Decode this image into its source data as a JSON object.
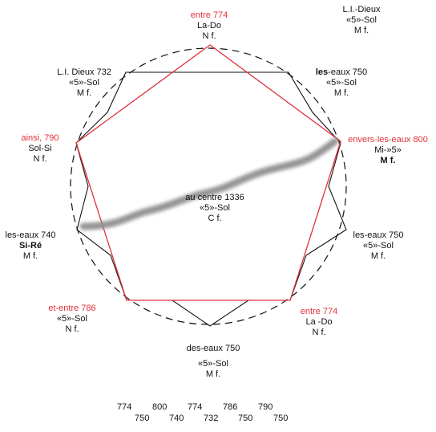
{
  "labels": {
    "top": {
      "head": "entre 774",
      "l2": "La-Do",
      "l3": "N f."
    },
    "top_right_corner": {
      "l1": "L.I.-Dieux",
      "l2": "«5»-Sol",
      "l3": "M f."
    },
    "upper_left": {
      "l1": "L.I. Dieux  732",
      "l2": "«5»-Sol",
      "l3": "M f."
    },
    "upper_right": {
      "l1_bold": "les",
      "l1_rest": "-eaux 750",
      "l2": "«5»-Sol",
      "l3": "M f."
    },
    "left_upper": {
      "head": "ainsi, 790",
      "l2": "Sol-Si",
      "l3": "N f."
    },
    "right_upper": {
      "head": "envers-les-eaux 800",
      "l2": "Mi-»5»",
      "l3": "M f."
    },
    "center": {
      "l1": "au centre 1336",
      "l2": "«5»-Sol",
      "l3": "C f."
    },
    "left_middle": {
      "l1": "les-eaux 740",
      "l2": "Si-Ré",
      "l3": "M f."
    },
    "right_middle": {
      "l1": "les-eaux 750",
      "l2": "«5»-Sol",
      "l3": "M f."
    },
    "lower_left": {
      "head": "et-entre 786",
      "l2": "«5»-Sol",
      "l3": "N f."
    },
    "lower_right": {
      "head": "entre 774",
      "l2": "La -Do",
      "l3": "N f."
    },
    "bottom": {
      "l1": "des-eaux 750",
      "l2": "«5»-Sol",
      "l3": "M f."
    }
  },
  "number_rows": {
    "row1": [
      "774",
      "800",
      "774",
      "786",
      "790"
    ],
    "row2": [
      "750",
      "740",
      "732",
      "750",
      "750"
    ]
  },
  "colors": {
    "pentagon": "#e0303a",
    "circle": "#111111",
    "outer": "#111111",
    "stroke_mark": "#8a8a8a"
  }
}
